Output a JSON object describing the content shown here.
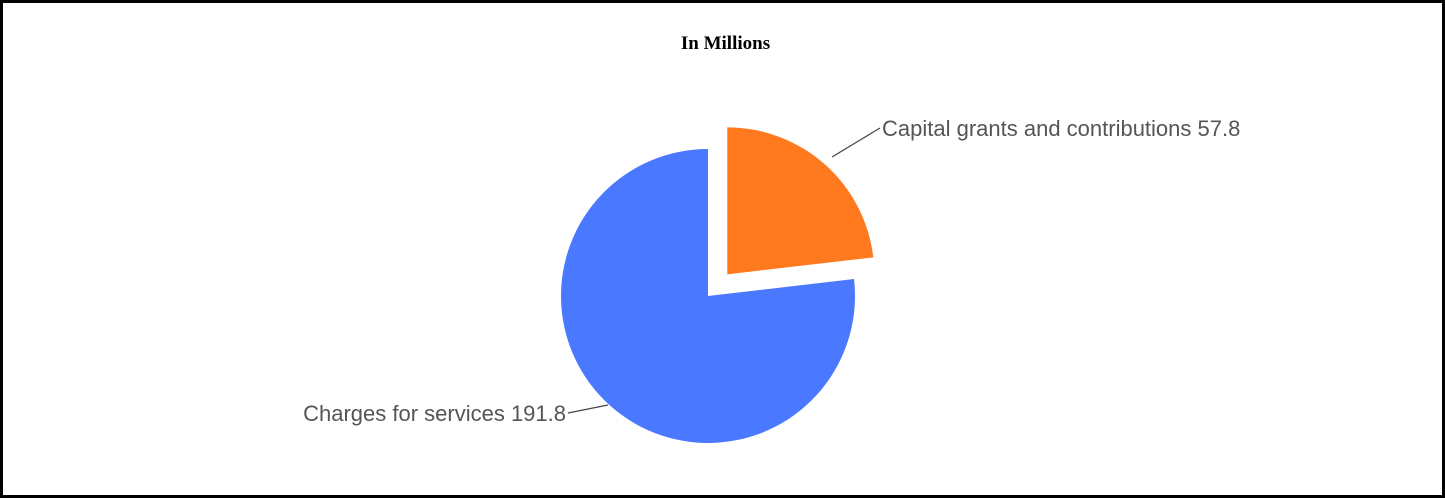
{
  "chart_data": {
    "type": "pie",
    "title": "In Millions",
    "exploded": "Capital grants and contributions",
    "slices": [
      {
        "label": "Capital grants and contributions",
        "value": 57.8,
        "display": "Capital grants and contributions 57.8",
        "color": "#ff7a1f"
      },
      {
        "label": "Charges for services",
        "value": 191.8,
        "display": "Charges for services 191.8",
        "color": "#4a78ff"
      }
    ]
  }
}
